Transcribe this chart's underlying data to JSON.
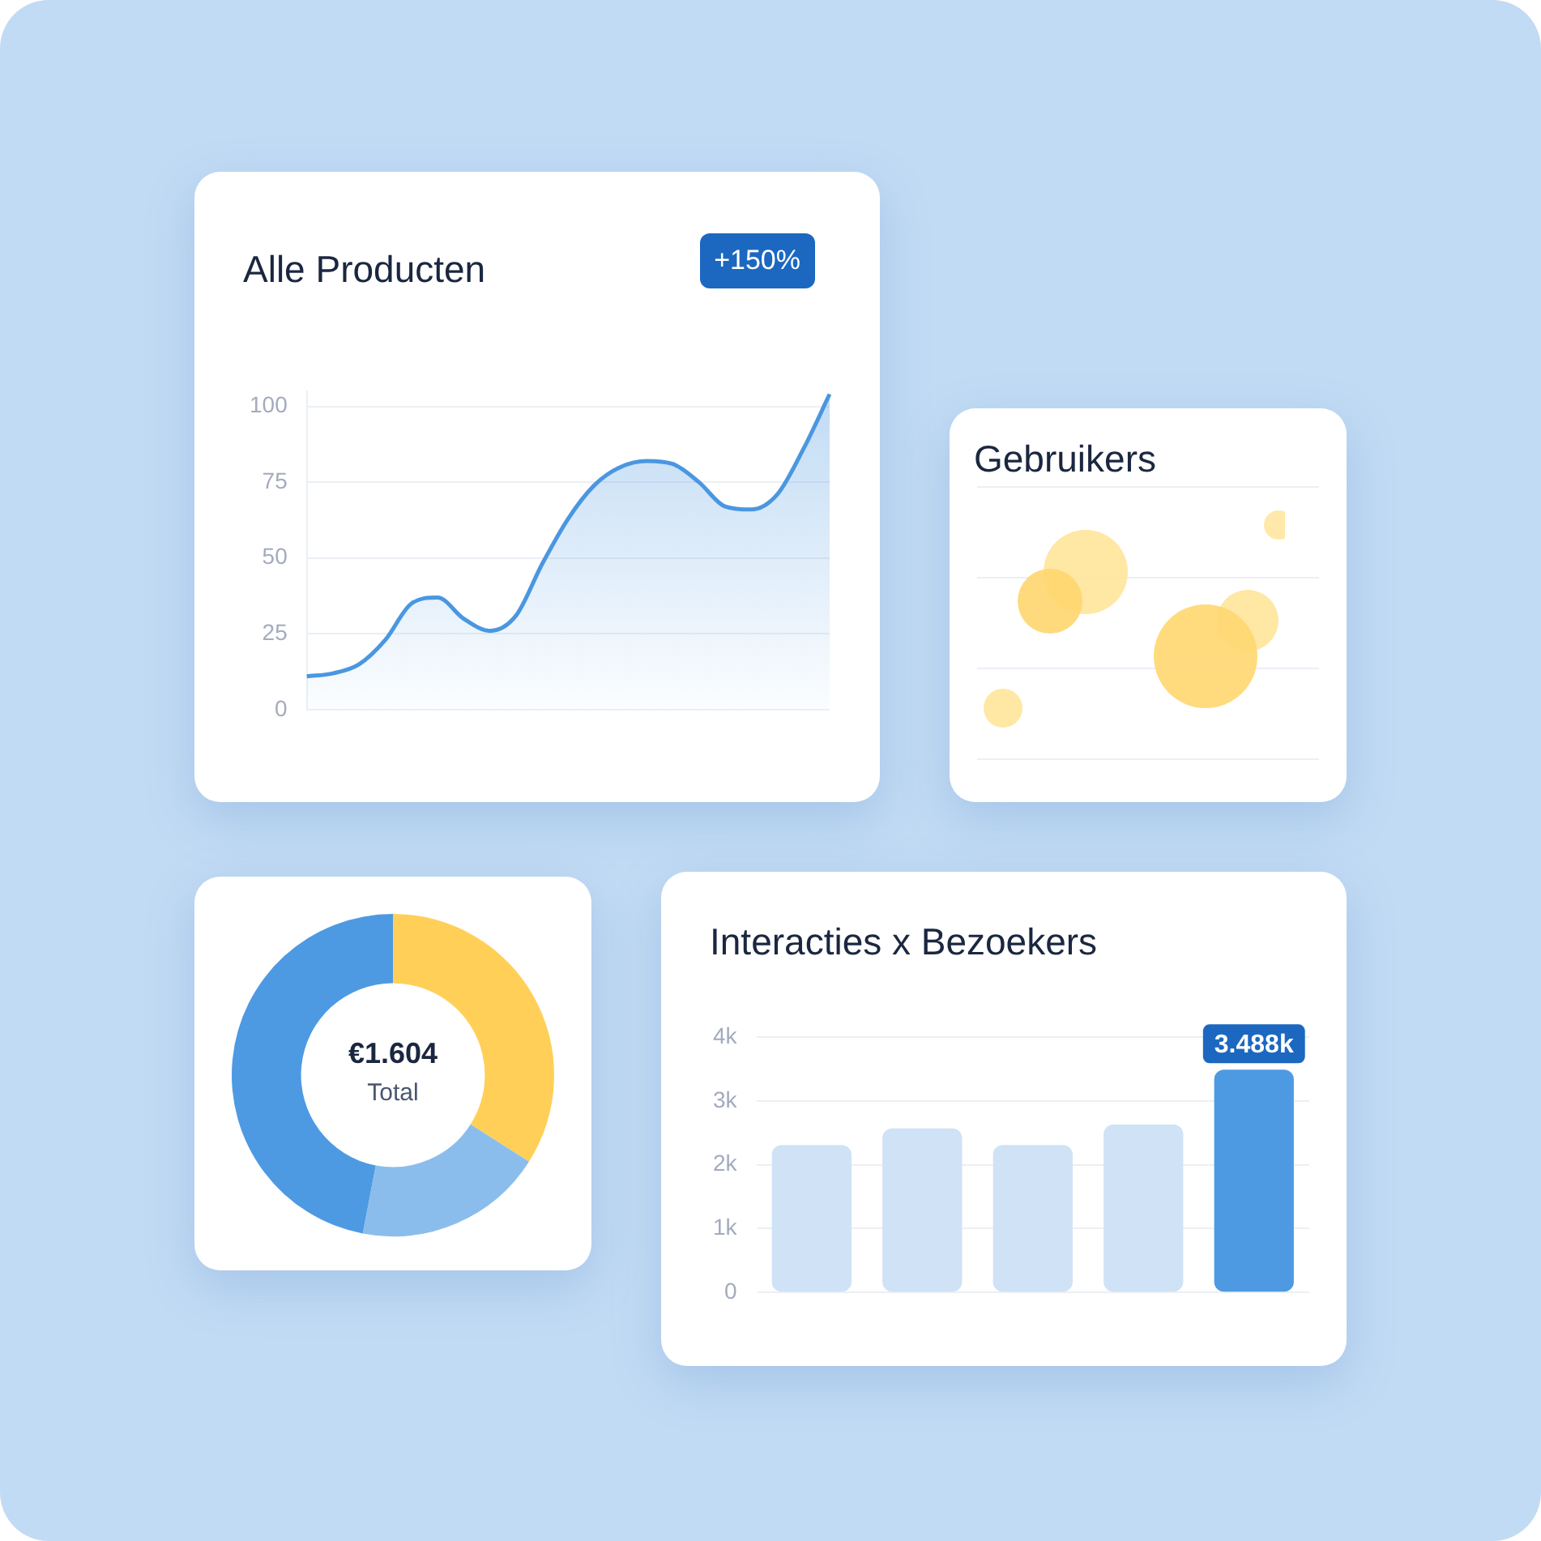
{
  "chart_data": [
    {
      "type": "area",
      "title": "Alle Producten",
      "annotations": [
        "+150%"
      ],
      "categories": [
        null,
        null,
        null,
        null,
        null,
        null,
        null,
        null,
        null,
        null,
        null,
        null,
        null,
        null,
        null,
        null,
        null,
        null,
        null,
        null,
        null
      ],
      "values": [
        11,
        12,
        15,
        23,
        35,
        37,
        30,
        26,
        31,
        48,
        63,
        74,
        80,
        82,
        81,
        75,
        67,
        66,
        71,
        86,
        104
      ],
      "color": "#4a97e0",
      "ylim": [
        0,
        105
      ],
      "yticks": [
        0,
        25,
        50,
        75,
        100
      ],
      "grid": "y"
    },
    {
      "type": "other",
      "title": "Gebruikers"
    },
    {
      "type": "donut",
      "categories": [
        null,
        null,
        null
      ],
      "values": [
        34,
        19,
        47
      ],
      "colors": [
        "#ffcf57",
        "#8bbdec",
        "#4d9ae2"
      ],
      "annotations": [
        "€1.604",
        "Total"
      ]
    },
    {
      "type": "bar",
      "title": "Interacties x Bezoekers",
      "categories": [
        null,
        null,
        null,
        null,
        null
      ],
      "values": [
        2310,
        2570,
        2310,
        2630,
        3488
      ],
      "colors": [
        "#cfe2f6",
        "#cfe2f6",
        "#cfe2f6",
        "#cfe2f6",
        "#4d9ae2"
      ],
      "value_labels": [
        null,
        null,
        null,
        null,
        "3.488k"
      ],
      "ylim": [
        0,
        4000
      ],
      "yticks": [
        0,
        {
          "value": 1000,
          "label": "1k"
        },
        {
          "value": 2000,
          "label": "2k"
        },
        {
          "value": 3000,
          "label": "3k"
        },
        {
          "value": 4000,
          "label": "4k"
        }
      ],
      "grid": "y"
    }
  ]
}
